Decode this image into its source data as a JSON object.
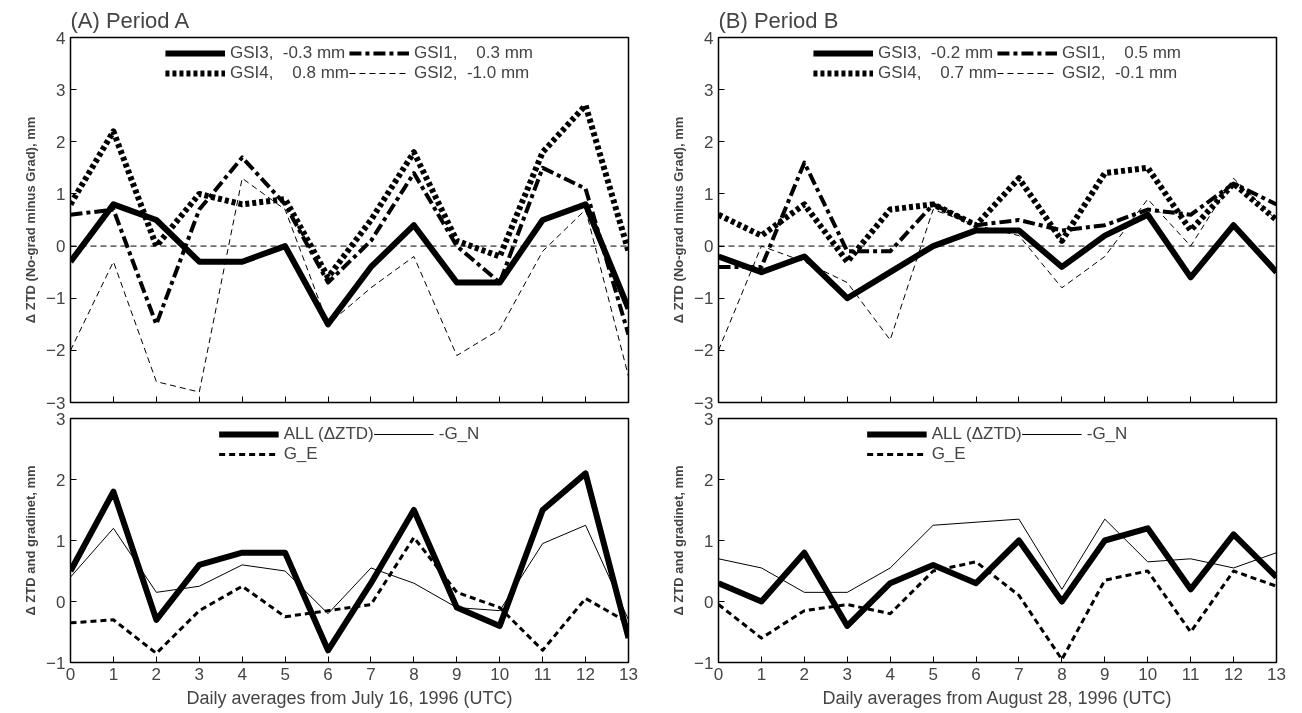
{
  "chart_data": [
    {
      "type": "line",
      "title": "(A) Period A",
      "ylabel": "Δ ZTD (No-grad minus Grad), mm",
      "x": [
        0,
        1,
        2,
        3,
        4,
        5,
        6,
        7,
        8,
        9,
        10,
        11,
        12,
        13
      ],
      "xlim": [
        0,
        13
      ],
      "xticks": [
        0,
        1,
        2,
        3,
        4,
        5,
        6,
        7,
        8,
        9,
        10,
        11,
        12,
        13
      ],
      "ylim": [
        -3,
        4
      ],
      "yticks": [
        -3,
        -2,
        -1,
        0,
        1,
        2,
        3,
        4
      ],
      "tick_labels": "y",
      "grid": false,
      "legend": "top",
      "ref_lines": [
        {
          "axis": "y",
          "value": 0,
          "line_style": "dashed"
        }
      ],
      "series": [
        {
          "name": "GSI3,  -0.3 mm",
          "color": "#000000",
          "line_style": "solid",
          "values": [
            -0.3,
            0.8,
            0.5,
            -0.3,
            -0.3,
            0.0,
            -1.5,
            -0.4,
            0.4,
            -0.7,
            -0.7,
            0.5,
            0.8,
            -1.2
          ]
        },
        {
          "name": "GSI4,    0.8 mm",
          "color": "#000000",
          "line_style": "dotted",
          "values": [
            0.8,
            2.2,
            0.0,
            1.0,
            0.8,
            0.9,
            -0.6,
            0.5,
            1.8,
            0.1,
            -0.2,
            1.8,
            2.7,
            -0.1
          ]
        },
        {
          "name": "GSI1,    0.3 mm",
          "color": "#000000",
          "line_style": "dashdot",
          "values": [
            0.6,
            0.7,
            -1.5,
            0.7,
            1.7,
            0.8,
            -0.7,
            0.1,
            1.4,
            0.0,
            -0.7,
            1.5,
            1.1,
            -1.7
          ]
        },
        {
          "name": "GSI2,  -1.0 mm",
          "color": "#000000",
          "line_style": "dashed",
          "values": [
            -2.0,
            -0.3,
            -2.6,
            -2.8,
            1.3,
            0.7,
            -1.5,
            -0.8,
            -0.2,
            -2.1,
            -1.6,
            -0.1,
            0.7,
            -2.5
          ]
        }
      ]
    },
    {
      "type": "line",
      "title": "(B) Period B",
      "ylabel": "Δ ZTD (No-grad minus Grad), mm",
      "x": [
        0,
        1,
        2,
        3,
        4,
        5,
        6,
        7,
        8,
        9,
        10,
        11,
        12,
        13
      ],
      "xlim": [
        0,
        13
      ],
      "xticks": [
        0,
        1,
        2,
        3,
        4,
        5,
        6,
        7,
        8,
        9,
        10,
        11,
        12,
        13
      ],
      "ylim": [
        -3,
        4
      ],
      "yticks": [
        -3,
        -2,
        -1,
        0,
        1,
        2,
        3,
        4
      ],
      "tick_labels": "y",
      "grid": false,
      "legend": "top",
      "ref_lines": [
        {
          "axis": "y",
          "value": 0,
          "line_style": "dashed"
        }
      ],
      "series": [
        {
          "name": "GSI3,  -0.2 mm",
          "color": "#000000",
          "line_style": "solid",
          "values": [
            -0.2,
            -0.5,
            -0.2,
            -1.0,
            -0.5,
            0.0,
            0.3,
            0.3,
            -0.4,
            0.2,
            0.6,
            -0.6,
            0.4,
            -0.5
          ]
        },
        {
          "name": "GSI4,    0.7 mm",
          "color": "#000000",
          "line_style": "dotted",
          "values": [
            0.6,
            0.2,
            0.8,
            -0.3,
            0.7,
            0.8,
            0.4,
            1.3,
            0.1,
            1.4,
            1.5,
            0.3,
            1.2,
            0.5
          ]
        },
        {
          "name": "GSI1,    0.5 mm",
          "color": "#000000",
          "line_style": "dashdot",
          "values": [
            -0.4,
            -0.4,
            1.6,
            -0.1,
            -0.1,
            0.8,
            0.4,
            0.5,
            0.3,
            0.4,
            0.7,
            0.6,
            1.2,
            0.8
          ]
        },
        {
          "name": "GSI2,  -0.1 mm",
          "color": "#000000",
          "line_style": "dashed",
          "values": [
            -2.0,
            0.0,
            -0.3,
            -0.7,
            -1.8,
            0.7,
            0.4,
            0.2,
            -0.8,
            -0.2,
            0.9,
            0.0,
            1.3,
            0.5
          ]
        }
      ]
    },
    {
      "type": "line",
      "xlabel": "Daily averages from July 16, 1996 (UTC)",
      "ylabel": "Δ ZTD and gradinet, mm",
      "x": [
        0,
        1,
        2,
        3,
        4,
        5,
        6,
        7,
        8,
        9,
        10,
        11,
        12,
        13
      ],
      "xlim": [
        0,
        13
      ],
      "xticks": [
        0,
        1,
        2,
        3,
        4,
        5,
        6,
        7,
        8,
        9,
        10,
        11,
        12,
        13
      ],
      "ylim": [
        -1,
        3
      ],
      "yticks": [
        -1,
        0,
        1,
        2,
        3
      ],
      "grid": false,
      "legend": "top",
      "series": [
        {
          "name": "ALL (ΔZTD)",
          "color": "#000000",
          "line_style": "solid",
          "values": [
            0.5,
            1.8,
            -0.3,
            0.6,
            0.8,
            0.8,
            -0.8,
            0.3,
            1.5,
            -0.1,
            -0.4,
            1.5,
            2.1,
            -0.6
          ]
        },
        {
          "name": "G_E",
          "color": "#000000",
          "line_style": "dashed",
          "values": [
            -0.35,
            -0.3,
            -0.85,
            -0.15,
            0.25,
            -0.25,
            -0.15,
            -0.05,
            1.05,
            0.15,
            -0.1,
            -0.8,
            0.05,
            -0.35
          ]
        },
        {
          "name": "-G_N",
          "color": "#000000",
          "line_style": "solid",
          "values": [
            0.4,
            1.2,
            0.15,
            0.25,
            0.6,
            0.5,
            -0.2,
            0.55,
            0.3,
            -0.1,
            -0.15,
            0.95,
            1.25,
            -0.3
          ]
        }
      ]
    },
    {
      "type": "line",
      "xlabel": "Daily averages from August 28, 1996 (UTC)",
      "ylabel": "Δ ZTD and gradinet, mm",
      "x": [
        0,
        1,
        2,
        3,
        4,
        5,
        6,
        7,
        8,
        9,
        10,
        11,
        12,
        13
      ],
      "xlim": [
        0,
        13
      ],
      "xticks": [
        0,
        1,
        2,
        3,
        4,
        5,
        6,
        7,
        8,
        9,
        10,
        11,
        12,
        13
      ],
      "ylim": [
        -1,
        3
      ],
      "yticks": [
        -1,
        0,
        1,
        2,
        3
      ],
      "grid": false,
      "legend": "top",
      "series": [
        {
          "name": "ALL (ΔZTD)",
          "color": "#000000",
          "line_style": "solid",
          "values": [
            0.3,
            0.0,
            0.8,
            -0.4,
            0.3,
            0.6,
            0.3,
            1.0,
            0.0,
            1.0,
            1.2,
            0.2,
            1.1,
            0.4
          ]
        },
        {
          "name": "G_E",
          "color": "#000000",
          "line_style": "dashed",
          "values": [
            -0.05,
            -0.6,
            -0.15,
            -0.05,
            -0.2,
            0.5,
            0.65,
            0.1,
            -0.95,
            0.35,
            0.5,
            -0.5,
            0.5,
            0.25
          ]
        },
        {
          "name": "-G_N",
          "color": "#000000",
          "line_style": "solid",
          "values": [
            0.7,
            0.55,
            0.15,
            0.15,
            0.55,
            1.25,
            1.3,
            1.35,
            0.2,
            1.35,
            0.65,
            0.7,
            0.55,
            0.8
          ]
        }
      ]
    }
  ]
}
